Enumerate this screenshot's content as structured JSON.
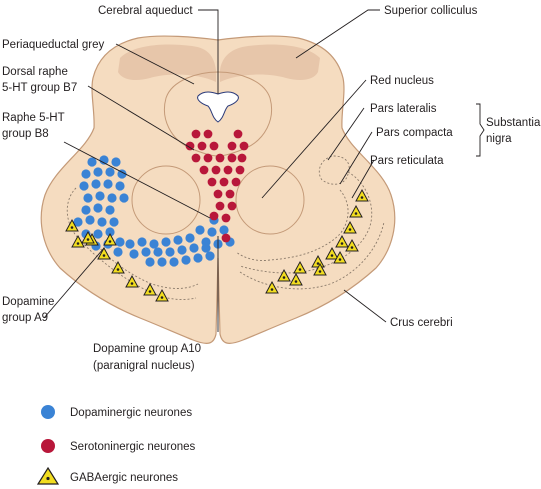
{
  "labels": {
    "cerebral_aqueduct": "Cerebral aqueduct",
    "superior_colliculus": "Superior colliculus",
    "periaqueductal_grey": "Periaqueductal grey",
    "dorsal_raphe_1": "Dorsal raphe",
    "dorsal_raphe_2": "5-HT group B7",
    "raphe_b8_1": "Raphe 5-HT",
    "raphe_b8_2": "group B8",
    "red_nucleus": "Red nucleus",
    "pars_lateralis": "Pars lateralis",
    "pars_compacta": "Pars compacta",
    "pars_reticulata": "Pars reticulata",
    "substantia_nigra_1": "Substantia",
    "substantia_nigra_2": "nigra",
    "dopamine_a9_1": "Dopamine",
    "dopamine_a9_2": "group A9",
    "crus_cerebri": "Crus cerebri",
    "dopamine_a10_1": "Dopamine group A10",
    "dopamine_a10_2": "(paranigral nucleus)"
  },
  "legend": {
    "dopaminergic": "Dopaminergic neurones",
    "serotoninergic": "Serotoninergic neurones",
    "gabaergic": "GABAergic neurones"
  },
  "colors": {
    "tissue": "#f5dcc0",
    "tissue_outline": "#c49a78",
    "dorsal_shade": "#e7c6aa",
    "dopaminergic": "#3a83d5",
    "serotoninergic": "#b8173a",
    "gabaergic": "#f2dd1f",
    "aqueduct": "#ffffff"
  }
}
